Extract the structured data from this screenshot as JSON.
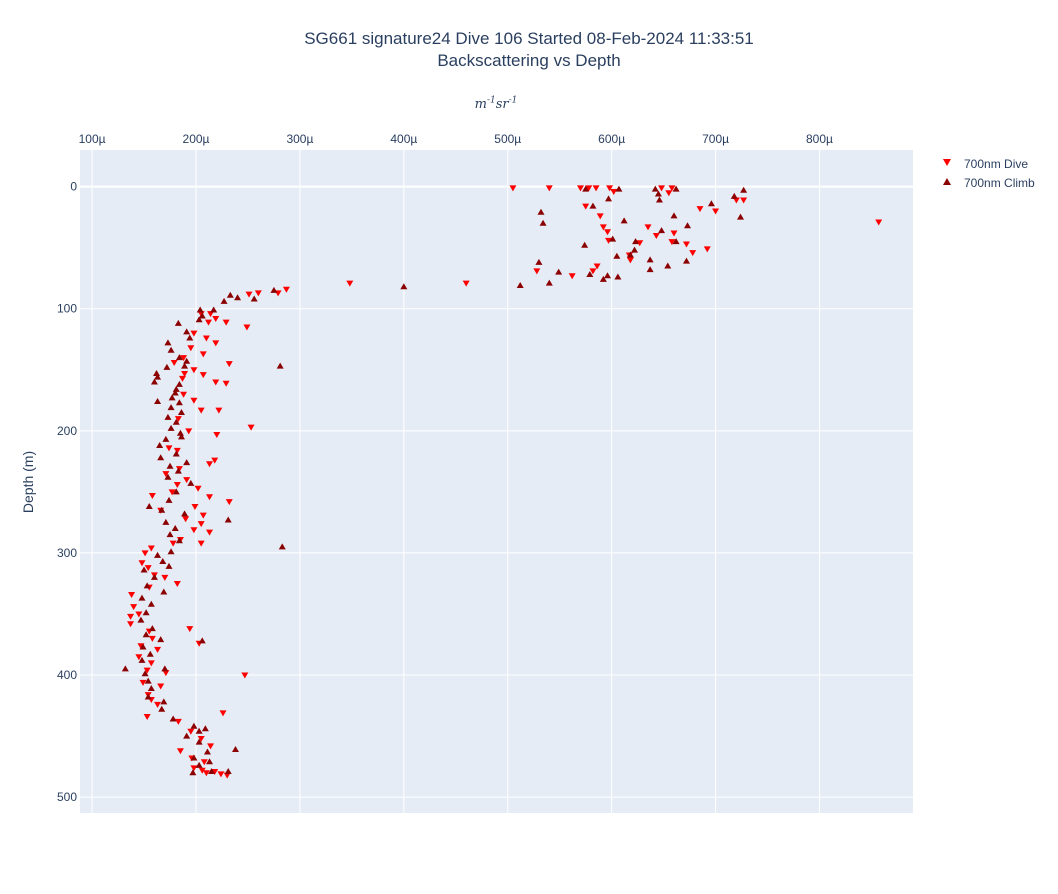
{
  "chart_data": {
    "type": "scatter",
    "title": "SG661 signature24 Dive 106 Started 08-Feb-2024 11:33:51",
    "subtitle": "Backscattering vs Depth",
    "xlabel": "m^{-1}sr^{-1}",
    "ylabel": "Depth (m)",
    "x_units": "m^-1 sr^-1",
    "xlim": [
      8.836e-05,
      0.00089
    ],
    "ylim": [
      513,
      -30
    ],
    "x_axis_side": "top",
    "y_reversed": true,
    "grid": true,
    "legend_position": "top-right",
    "plot_background": "#e5ecf6",
    "x_ticks": [
      {
        "value": 0.0001,
        "label": "100µ"
      },
      {
        "value": 0.0002,
        "label": "200µ"
      },
      {
        "value": 0.0003,
        "label": "300µ"
      },
      {
        "value": 0.0004,
        "label": "400µ"
      },
      {
        "value": 0.0005,
        "label": "500µ"
      },
      {
        "value": 0.0006,
        "label": "600µ"
      },
      {
        "value": 0.0007,
        "label": "700µ"
      },
      {
        "value": 0.0008,
        "label": "800µ"
      }
    ],
    "y_ticks": [
      {
        "value": 0,
        "label": "0"
      },
      {
        "value": 100,
        "label": "100"
      },
      {
        "value": 200,
        "label": "200"
      },
      {
        "value": 300,
        "label": "300"
      },
      {
        "value": 400,
        "label": "400"
      },
      {
        "value": 500,
        "label": "500"
      }
    ],
    "series": [
      {
        "name": "700nm Dive",
        "marker": "triangle-down",
        "color": "#ff0000",
        "points": [
          [
            0.000505,
            1
          ],
          [
            0.00054,
            1
          ],
          [
            0.00057,
            1
          ],
          [
            0.000578,
            1
          ],
          [
            0.000585,
            1
          ],
          [
            0.000598,
            1
          ],
          [
            0.000648,
            1
          ],
          [
            0.000658,
            1
          ],
          [
            0.000602,
            4
          ],
          [
            0.000655,
            5
          ],
          [
            0.00072,
            11
          ],
          [
            0.000727,
            11
          ],
          [
            0.000575,
            16
          ],
          [
            0.000685,
            18
          ],
          [
            0.0007,
            20
          ],
          [
            0.000589,
            24
          ],
          [
            0.000857,
            29
          ],
          [
            0.000592,
            33
          ],
          [
            0.000635,
            33
          ],
          [
            0.000596,
            37
          ],
          [
            0.00066,
            38
          ],
          [
            0.000643,
            40
          ],
          [
            0.000597,
            44
          ],
          [
            0.000627,
            46
          ],
          [
            0.000658,
            45
          ],
          [
            0.000672,
            47
          ],
          [
            0.000692,
            51
          ],
          [
            0.000678,
            54
          ],
          [
            0.000617,
            56
          ],
          [
            0.000618,
            60
          ],
          [
            0.000586,
            65
          ],
          [
            0.000528,
            69
          ],
          [
            0.000562,
            73
          ],
          [
            0.000582,
            69
          ],
          [
            0.00046,
            79
          ],
          [
            0.000348,
            79
          ],
          [
            0.000287,
            84
          ],
          [
            0.000279,
            87
          ],
          [
            0.00026,
            87
          ],
          [
            0.000251,
            88
          ],
          [
            0.000214,
            104
          ],
          [
            0.000205,
            104
          ],
          [
            0.000219,
            108
          ],
          [
            0.000212,
            111
          ],
          [
            0.000229,
            111
          ],
          [
            0.000249,
            115
          ],
          [
            0.000198,
            120
          ],
          [
            0.00021,
            124
          ],
          [
            0.000219,
            128
          ],
          [
            0.000195,
            132
          ],
          [
            0.000207,
            137
          ],
          [
            0.000188,
            140
          ],
          [
            0.000179,
            144
          ],
          [
            0.000232,
            145
          ],
          [
            0.000198,
            150
          ],
          [
            0.000189,
            153
          ],
          [
            0.000207,
            154
          ],
          [
            0.000187,
            157
          ],
          [
            0.000219,
            160
          ],
          [
            0.000229,
            161
          ],
          [
            0.000188,
            170
          ],
          [
            0.000198,
            175
          ],
          [
            0.000222,
            183
          ],
          [
            0.000205,
            183
          ],
          [
            0.000183,
            190
          ],
          [
            0.000253,
            197
          ],
          [
            0.000193,
            200
          ],
          [
            0.00022,
            203
          ],
          [
            0.000174,
            214
          ],
          [
            0.000182,
            216
          ],
          [
            0.000218,
            224
          ],
          [
            0.000213,
            227
          ],
          [
            0.000184,
            231
          ],
          [
            0.000171,
            235
          ],
          [
            0.000191,
            240
          ],
          [
            0.000182,
            244
          ],
          [
            0.000202,
            247
          ],
          [
            0.000177,
            250
          ],
          [
            0.000158,
            253
          ],
          [
            0.000213,
            254
          ],
          [
            0.000232,
            258
          ],
          [
            0.000199,
            262
          ],
          [
            0.000166,
            265
          ],
          [
            0.000207,
            269
          ],
          [
            0.00019,
            272
          ],
          [
            0.000205,
            276
          ],
          [
            0.000198,
            281
          ],
          [
            0.000213,
            283
          ],
          [
            0.000185,
            289
          ],
          [
            0.000205,
            292
          ],
          [
            0.000178,
            292
          ],
          [
            0.000157,
            296
          ],
          [
            0.000151,
            300
          ],
          [
            0.000148,
            308
          ],
          [
            0.000154,
            312
          ],
          [
            0.00016,
            318
          ],
          [
            0.00017,
            320
          ],
          [
            0.000182,
            325
          ],
          [
            0.000155,
            328
          ],
          [
            0.000138,
            334
          ],
          [
            0.00014,
            344
          ],
          [
            0.000145,
            350
          ],
          [
            0.000137,
            352
          ],
          [
            0.000137,
            358
          ],
          [
            0.000194,
            362
          ],
          [
            0.000155,
            364
          ],
          [
            0.000158,
            370
          ],
          [
            0.000203,
            374
          ],
          [
            0.000147,
            376
          ],
          [
            0.000163,
            379
          ],
          [
            0.000145,
            385
          ],
          [
            0.000157,
            390
          ],
          [
            0.000153,
            396
          ],
          [
            0.000171,
            398
          ],
          [
            0.000247,
            400
          ],
          [
            0.000149,
            406
          ],
          [
            0.000166,
            409
          ],
          [
            0.000154,
            416
          ],
          [
            0.000157,
            420
          ],
          [
            0.000163,
            424
          ],
          [
            0.000226,
            431
          ],
          [
            0.000153,
            434
          ],
          [
            0.000183,
            438
          ],
          [
            0.000195,
            446
          ],
          [
            0.000205,
            452
          ],
          [
            0.000214,
            458
          ],
          [
            0.000185,
            462
          ],
          [
            0.000196,
            468
          ],
          [
            0.000208,
            471
          ],
          [
            0.000198,
            476
          ],
          [
            0.00021,
            480
          ],
          [
            0.000224,
            481
          ],
          [
            0.00023,
            482
          ],
          [
            0.000206,
            478
          ],
          [
            0.000218,
            479
          ]
        ]
      },
      {
        "name": "700nm Climb",
        "marker": "triangle-up",
        "color": "#8b0000",
        "points": [
          [
            0.000727,
            3
          ],
          [
            0.000642,
            2
          ],
          [
            0.000662,
            2
          ],
          [
            0.000607,
            2
          ],
          [
            0.000575,
            2
          ],
          [
            0.000645,
            6
          ],
          [
            0.000718,
            8
          ],
          [
            0.000597,
            10
          ],
          [
            0.000696,
            14
          ],
          [
            0.000646,
            11
          ],
          [
            0.000582,
            16
          ],
          [
            0.000532,
            21
          ],
          [
            0.000724,
            25
          ],
          [
            0.000612,
            28
          ],
          [
            0.00066,
            24
          ],
          [
            0.000673,
            32
          ],
          [
            0.000534,
            30
          ],
          [
            0.000648,
            36
          ],
          [
            0.000623,
            45
          ],
          [
            0.000662,
            45
          ],
          [
            0.000601,
            43
          ],
          [
            0.000574,
            48
          ],
          [
            0.000622,
            52
          ],
          [
            0.000618,
            56
          ],
          [
            0.000605,
            57
          ],
          [
            0.000637,
            60
          ],
          [
            0.000672,
            61
          ],
          [
            0.000654,
            65
          ],
          [
            0.00053,
            62
          ],
          [
            0.000549,
            70
          ],
          [
            0.000579,
            72
          ],
          [
            0.000637,
            68
          ],
          [
            0.000596,
            73
          ],
          [
            0.000606,
            74
          ],
          [
            0.000592,
            76
          ],
          [
            0.000512,
            81
          ],
          [
            0.00054,
            79
          ],
          [
            0.0004,
            82
          ],
          [
            0.000275,
            85
          ],
          [
            0.000256,
            92
          ],
          [
            0.000233,
            89
          ],
          [
            0.00024,
            91
          ],
          [
            0.000227,
            94
          ],
          [
            0.000204,
            101
          ],
          [
            0.000217,
            101
          ],
          [
            0.000206,
            106
          ],
          [
            0.000203,
            109
          ],
          [
            0.000183,
            112
          ],
          [
            0.000191,
            119
          ],
          [
            0.000194,
            124
          ],
          [
            0.000173,
            128
          ],
          [
            0.000176,
            134
          ],
          [
            0.000184,
            140
          ],
          [
            0.000191,
            143
          ],
          [
            0.000172,
            148
          ],
          [
            0.000189,
            147
          ],
          [
            0.000281,
            147
          ],
          [
            0.000162,
            153
          ],
          [
            0.000163,
            156
          ],
          [
            0.00016,
            160
          ],
          [
            0.000184,
            162
          ],
          [
            0.000181,
            166
          ],
          [
            0.00018,
            169
          ],
          [
            0.000177,
            173
          ],
          [
            0.000163,
            176
          ],
          [
            0.000184,
            177
          ],
          [
            0.000176,
            181
          ],
          [
            0.000186,
            185
          ],
          [
            0.000173,
            189
          ],
          [
            0.000181,
            193
          ],
          [
            0.000176,
            198
          ],
          [
            0.000185,
            202
          ],
          [
            0.000186,
            205
          ],
          [
            0.000171,
            207
          ],
          [
            0.000165,
            212
          ],
          [
            0.000181,
            219
          ],
          [
            0.000166,
            222
          ],
          [
            0.000191,
            226
          ],
          [
            0.000175,
            229
          ],
          [
            0.000183,
            233
          ],
          [
            0.000173,
            238
          ],
          [
            0.000195,
            243
          ],
          [
            0.000181,
            250
          ],
          [
            0.000174,
            257
          ],
          [
            0.000155,
            262
          ],
          [
            0.000167,
            265
          ],
          [
            0.000189,
            268
          ],
          [
            0.000231,
            273
          ],
          [
            0.000171,
            275
          ],
          [
            0.00018,
            280
          ],
          [
            0.000175,
            285
          ],
          [
            0.000184,
            290
          ],
          [
            0.000283,
            295
          ],
          [
            0.000176,
            299
          ],
          [
            0.000163,
            302
          ],
          [
            0.000168,
            307
          ],
          [
            0.000174,
            311
          ],
          [
            0.00015,
            314
          ],
          [
            0.00016,
            320
          ],
          [
            0.000153,
            327
          ],
          [
            0.000169,
            332
          ],
          [
            0.000148,
            337
          ],
          [
            0.000157,
            342
          ],
          [
            0.000152,
            349
          ],
          [
            0.000147,
            355
          ],
          [
            0.000158,
            362
          ],
          [
            0.000152,
            367
          ],
          [
            0.000166,
            371
          ],
          [
            0.000206,
            372
          ],
          [
            0.000149,
            377
          ],
          [
            0.000156,
            383
          ],
          [
            0.000148,
            388
          ],
          [
            0.000132,
            395
          ],
          [
            0.00017,
            395
          ],
          [
            0.000151,
            399
          ],
          [
            0.000154,
            405
          ],
          [
            0.000157,
            411
          ],
          [
            0.000154,
            418
          ],
          [
            0.000169,
            422
          ],
          [
            0.000167,
            428
          ],
          [
            0.000178,
            436
          ],
          [
            0.000198,
            442
          ],
          [
            0.000203,
            446
          ],
          [
            0.000209,
            444
          ],
          [
            0.000191,
            450
          ],
          [
            0.000203,
            455
          ],
          [
            0.000238,
            461
          ],
          [
            0.000211,
            463
          ],
          [
            0.000198,
            468
          ],
          [
            0.000213,
            471
          ],
          [
            0.000203,
            474
          ],
          [
            0.000197,
            480
          ],
          [
            0.000215,
            479
          ],
          [
            0.000231,
            479
          ]
        ]
      }
    ]
  }
}
